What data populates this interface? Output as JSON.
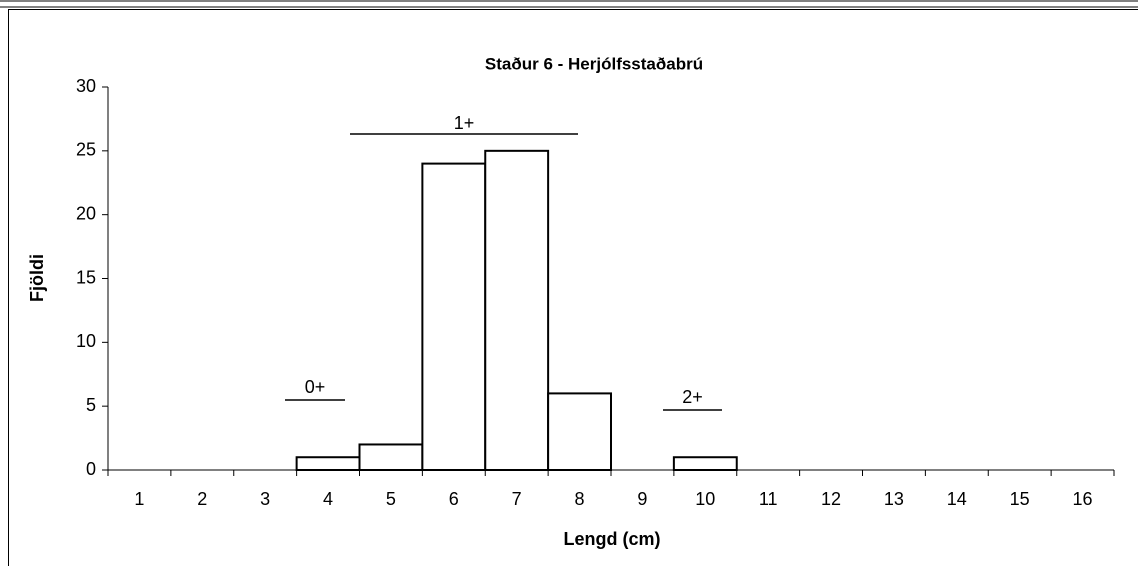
{
  "chart_data": {
    "type": "bar",
    "title": "Staður 6 - Herjólfsstaðabrú",
    "x_label": "Lengd (cm)",
    "y_label": "Fjöldi",
    "categories": [
      "1",
      "2",
      "3",
      "4",
      "5",
      "6",
      "7",
      "8",
      "9",
      "10",
      "11",
      "12",
      "13",
      "14",
      "15",
      "16"
    ],
    "values": [
      0,
      0,
      0,
      1,
      2,
      24,
      25,
      6,
      0,
      1,
      0,
      0,
      0,
      0,
      0,
      0
    ],
    "color": "#ffffff",
    "ylim": [
      0,
      30
    ],
    "yticks": [
      0,
      5,
      10,
      15,
      20,
      25,
      30
    ],
    "grid": false,
    "annotations": [
      "0+",
      "1+",
      "2+"
    ]
  }
}
